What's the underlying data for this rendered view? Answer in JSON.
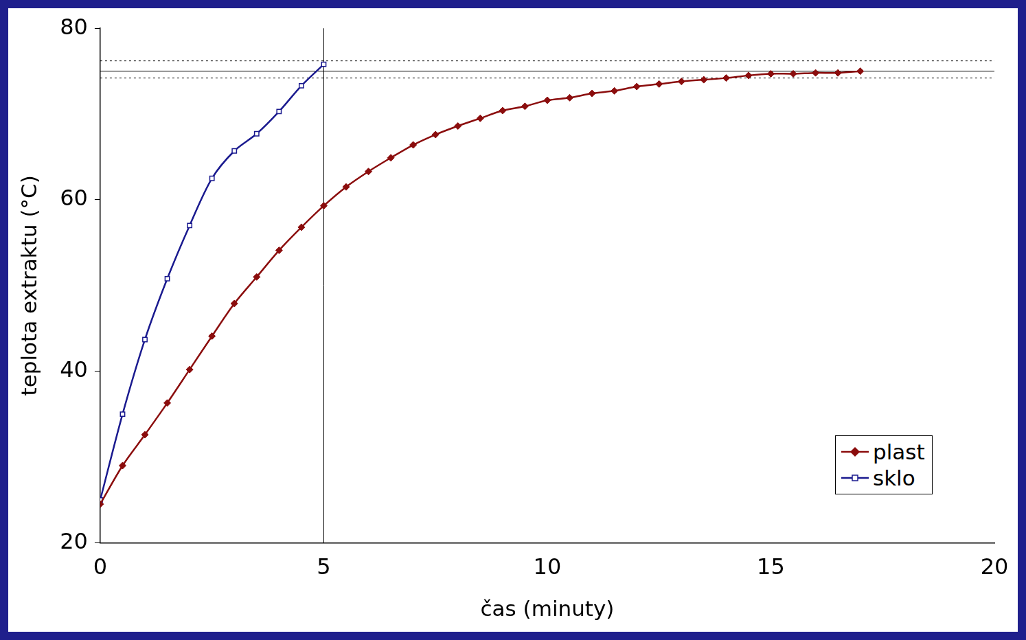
{
  "chart_data": {
    "type": "line",
    "x_label": "čas (minuty)",
    "y_label": "teplota extraktu (°C)",
    "series": [
      {
        "name": "plast",
        "color": "#8b0d0d",
        "marker": "diamond",
        "line_style": "solid",
        "x": [
          0,
          0.5,
          1,
          1.5,
          2,
          2.5,
          3,
          3.5,
          4,
          4.5,
          5,
          5.5,
          6,
          6.5,
          7,
          7.5,
          8,
          8.5,
          9,
          9.5,
          10,
          10.5,
          11,
          11.5,
          12,
          12.5,
          13,
          13.5,
          14,
          14.5,
          15,
          15.5,
          16,
          16.5,
          17
        ],
        "values": [
          24.5,
          29,
          32.6,
          36.3,
          40.2,
          44.1,
          47.9,
          51,
          54.1,
          56.8,
          59.3,
          61.5,
          63.3,
          64.9,
          66.4,
          67.6,
          68.6,
          69.5,
          70.4,
          70.9,
          71.6,
          71.9,
          72.4,
          72.7,
          73.2,
          73.5,
          73.8,
          74,
          74.2,
          74.5,
          74.7,
          74.7,
          74.8,
          74.8,
          75
        ]
      },
      {
        "name": "sklo",
        "color": "#1a1a8f",
        "marker": "square-open",
        "line_style": "solid",
        "x": [
          0,
          0.5,
          1,
          1.5,
          2,
          2.5,
          3,
          3.5,
          4,
          4.5,
          5
        ],
        "values": [
          25,
          35,
          43.7,
          50.8,
          57,
          62.5,
          65.7,
          67.7,
          70.3,
          73.3,
          75.8
        ]
      }
    ],
    "reference_lines": [
      {
        "axis": "y",
        "value": 75,
        "line_style": "solid"
      },
      {
        "axis": "y",
        "value": 76.2,
        "line_style": "dotted"
      },
      {
        "axis": "y",
        "value": 74.2,
        "line_style": "dotted"
      },
      {
        "axis": "x",
        "value": 5,
        "line_style": "solid"
      }
    ],
    "xlim": [
      0,
      20
    ],
    "xticks": [
      0,
      5,
      10,
      15,
      20
    ],
    "ylim": [
      20,
      80
    ],
    "yticks": [
      20,
      40,
      60,
      80
    ],
    "grid": false,
    "legend": "lower right"
  }
}
